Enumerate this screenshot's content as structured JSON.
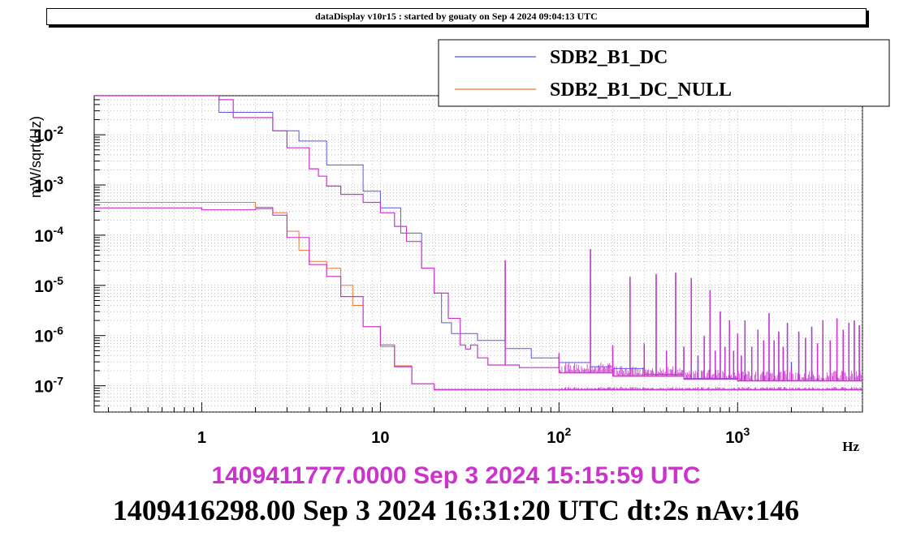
{
  "header": {
    "title": "dataDisplay v10r15 : started by gouaty on Sep  4 2024 09:04:13 UTC"
  },
  "colors": {
    "ref": "#cc33cc",
    "main": "#000000"
  },
  "footer": {
    "ref_time": "1409411777.0000 Sep 3 2024 15:15:59 UTC",
    "cur_time": "1409416298.00 Sep 3 2024 16:31:20 UTC dt:2s nAv:146"
  },
  "chart_data": {
    "type": "line",
    "xscale": "log",
    "yscale": "log",
    "xlim": [
      0.25,
      5000
    ],
    "ylim": [
      3e-08,
      0.06
    ],
    "xlabel": "Hz",
    "ylabel": "mW/sqrt(Hz)",
    "grid": true,
    "legend_position": "top-right",
    "xticks": [
      {
        "v": 1,
        "label": "1"
      },
      {
        "v": 10,
        "label": "10"
      },
      {
        "v": 100,
        "label": "10^2"
      },
      {
        "v": 1000,
        "label": "10^3"
      }
    ],
    "yticks": [
      {
        "v": 1e-07,
        "label": "10^-7"
      },
      {
        "v": 1e-06,
        "label": "10^-6"
      },
      {
        "v": 1e-05,
        "label": "10^-5"
      },
      {
        "v": 0.0001,
        "label": "10^-4"
      },
      {
        "v": 0.001,
        "label": "10^-3"
      },
      {
        "v": 0.01,
        "label": "10^-2"
      }
    ],
    "series": [
      {
        "name": "SDB2_B1_DC",
        "color": "#5555ee",
        "points": [
          [
            0.25,
            0.06
          ],
          [
            1.25,
            0.06
          ],
          [
            1.25,
            0.028
          ],
          [
            2.5,
            0.012
          ],
          [
            3.5,
            0.0075
          ],
          [
            5,
            0.0025
          ],
          [
            8,
            0.00075
          ],
          [
            10,
            0.00035
          ],
          [
            13,
            0.00011
          ],
          [
            17,
            2.2e-05
          ],
          [
            20,
            7e-06
          ],
          [
            22,
            1.8e-06
          ],
          [
            25,
            1.1e-06
          ],
          [
            35,
            8e-07
          ],
          [
            50,
            5.5e-07
          ],
          [
            70,
            3.6e-07
          ],
          [
            100,
            2.9e-07
          ],
          [
            150,
            2.4e-07
          ],
          [
            200,
            2.2e-07
          ],
          [
            300,
            1.7e-07
          ],
          [
            500,
            1.4e-07
          ],
          [
            1000,
            1.25e-07
          ],
          [
            5000,
            1.2e-07
          ]
        ],
        "peaks": [
          [
            50,
            3e-05
          ],
          [
            100,
            4e-07
          ],
          [
            150,
            5e-05
          ],
          [
            200,
            6e-07
          ],
          [
            250,
            1.4e-05
          ],
          [
            300,
            6e-07
          ],
          [
            350,
            1.6e-05
          ],
          [
            400,
            5e-07
          ],
          [
            450,
            1.7e-05
          ],
          [
            500,
            6e-07
          ],
          [
            550,
            1.4e-05
          ],
          [
            600,
            4e-07
          ],
          [
            650,
            9e-07
          ],
          [
            700,
            8e-06
          ],
          [
            750,
            5e-07
          ],
          [
            800,
            3e-06
          ],
          [
            850,
            6e-07
          ],
          [
            900,
            2e-06
          ],
          [
            950,
            5e-07
          ],
          [
            1000,
            1e-06
          ],
          [
            1050,
            4e-07
          ],
          [
            1100,
            2e-06
          ],
          [
            1200,
            6e-07
          ],
          [
            1300,
            1.3e-06
          ],
          [
            1400,
            8e-07
          ],
          [
            1500,
            2.8e-06
          ],
          [
            1600,
            8e-07
          ],
          [
            1700,
            1.2e-06
          ],
          [
            1800,
            6e-07
          ],
          [
            1900,
            1.8e-06
          ],
          [
            2000,
            3e-07
          ],
          [
            2200,
            1.2e-06
          ],
          [
            2400,
            9e-07
          ],
          [
            2600,
            1.5e-06
          ],
          [
            2800,
            7e-07
          ],
          [
            3000,
            2e-06
          ],
          [
            3300,
            8e-07
          ],
          [
            3600,
            2.2e-06
          ],
          [
            3900,
            1.3e-06
          ],
          [
            4200,
            1.8e-06
          ],
          [
            4500,
            2e-06
          ],
          [
            4800,
            1.6e-06
          ]
        ]
      },
      {
        "name": "SDB2_B1_DC_NULL",
        "color": "#ee7733",
        "points": [
          [
            0.25,
            0.00045
          ],
          [
            1.25,
            0.00045
          ],
          [
            2,
            0.00036
          ],
          [
            2.5,
            0.00028
          ],
          [
            3,
            0.00012
          ],
          [
            3.5,
            5e-05
          ],
          [
            4,
            3e-05
          ],
          [
            5,
            2.2e-05
          ],
          [
            6,
            1e-05
          ],
          [
            7,
            4e-06
          ],
          [
            8,
            1.5e-06
          ],
          [
            10,
            6e-07
          ],
          [
            12,
            2.5e-07
          ],
          [
            15,
            1.1e-07
          ],
          [
            20,
            8.5e-08
          ],
          [
            5000,
            8.3e-08
          ]
        ],
        "peaks": []
      },
      {
        "name": "",
        "color": "#cc33cc",
        "role": "reference",
        "points": [
          [
            0.25,
            0.06
          ],
          [
            1.25,
            0.06
          ],
          [
            1.25,
            0.05
          ],
          [
            1.5,
            0.022
          ],
          [
            2.5,
            0.012
          ],
          [
            3,
            0.0055
          ],
          [
            4,
            0.0021
          ],
          [
            4.5,
            0.0015
          ],
          [
            5,
            0.00095
          ],
          [
            6,
            0.00065
          ],
          [
            8,
            0.00045
          ],
          [
            10,
            0.00028
          ],
          [
            12,
            0.00015
          ],
          [
            14,
            7.5e-05
          ],
          [
            17,
            2.2e-05
          ],
          [
            20,
            7e-06
          ],
          [
            24,
            2.2e-06
          ],
          [
            28,
            6.5e-07
          ],
          [
            30,
            5.4e-07
          ],
          [
            32,
            6.5e-07
          ],
          [
            35,
            3.6e-07
          ],
          [
            40,
            2.6e-07
          ],
          [
            60,
            2.3e-07
          ],
          [
            100,
            1.8e-07
          ],
          [
            200,
            1.55e-07
          ],
          [
            500,
            1.35e-07
          ],
          [
            1000,
            1.25e-07
          ],
          [
            5000,
            1.2e-07
          ]
        ],
        "null_points": [
          [
            0.25,
            0.00035
          ],
          [
            1,
            0.00035
          ],
          [
            1,
            0.00032
          ],
          [
            2,
            0.00034
          ],
          [
            2.5,
            0.00025
          ],
          [
            3,
            9e-05
          ],
          [
            4,
            2.6e-05
          ],
          [
            5,
            1.5e-05
          ],
          [
            6,
            6e-06
          ],
          [
            8,
            1.5e-06
          ],
          [
            10,
            6.5e-07
          ],
          [
            12,
            2.4e-07
          ],
          [
            15,
            1.1e-07
          ],
          [
            20,
            8.3e-08
          ],
          [
            5000,
            8.1e-08
          ]
        ],
        "peaks": [
          [
            50,
            3.2e-05
          ],
          [
            100,
            4.5e-07
          ],
          [
            150,
            5.3e-05
          ],
          [
            200,
            6.5e-07
          ],
          [
            250,
            1.5e-05
          ],
          [
            300,
            7e-07
          ],
          [
            350,
            1.7e-05
          ],
          [
            400,
            5e-07
          ],
          [
            450,
            1.8e-05
          ],
          [
            500,
            6e-07
          ],
          [
            550,
            1.4e-05
          ],
          [
            600,
            4e-07
          ],
          [
            650,
            1e-06
          ],
          [
            700,
            8e-06
          ],
          [
            750,
            5e-07
          ],
          [
            800,
            3e-06
          ],
          [
            850,
            6e-07
          ],
          [
            900,
            2e-06
          ],
          [
            950,
            5e-07
          ],
          [
            1000,
            1.1e-06
          ],
          [
            1050,
            4e-07
          ],
          [
            1100,
            2e-06
          ],
          [
            1200,
            6e-07
          ],
          [
            1300,
            1.3e-06
          ],
          [
            1400,
            8e-07
          ],
          [
            1500,
            2.8e-06
          ],
          [
            1600,
            8e-07
          ],
          [
            1700,
            1.2e-06
          ],
          [
            1800,
            6e-07
          ],
          [
            1900,
            1.8e-06
          ],
          [
            2000,
            2.2e-07
          ],
          [
            2200,
            1.2e-06
          ],
          [
            2400,
            9e-07
          ],
          [
            2600,
            1.5e-06
          ],
          [
            2800,
            7e-07
          ],
          [
            3000,
            2e-06
          ],
          [
            3300,
            8e-07
          ],
          [
            3600,
            2.2e-06
          ],
          [
            3900,
            1.3e-06
          ],
          [
            4200,
            1.8e-06
          ],
          [
            4500,
            2e-06
          ],
          [
            4800,
            1.6e-06
          ]
        ]
      }
    ]
  }
}
